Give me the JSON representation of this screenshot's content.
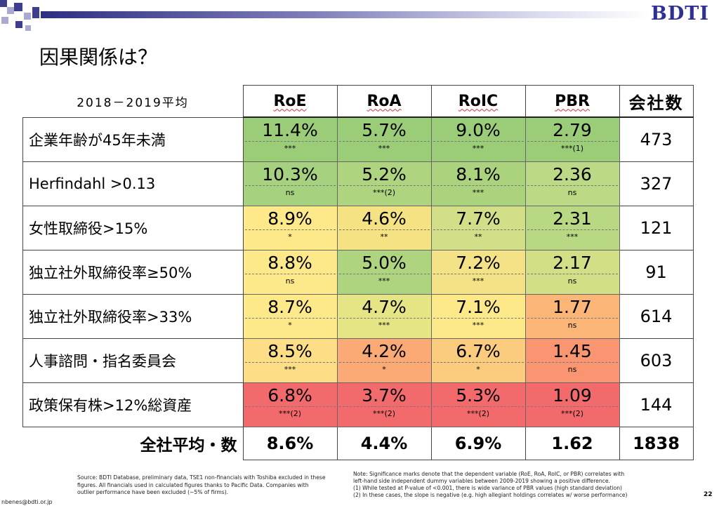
{
  "brand": {
    "logo_text": "BDTI"
  },
  "title": "因果関係は？",
  "table": {
    "period_label": "2018－2019平均",
    "columns": [
      "RoE",
      "RoA",
      "RoIC",
      "PBR"
    ],
    "count_header": "会社数",
    "rows": [
      {
        "label": "企業年齢が45年未満",
        "cells": [
          {
            "value": "11.4%",
            "sig": "***",
            "color": "#9bcd78"
          },
          {
            "value": "5.7%",
            "sig": "***",
            "color": "#9bcd78"
          },
          {
            "value": "9.0%",
            "sig": "***",
            "color": "#9bcd78"
          },
          {
            "value": "2.79",
            "sig": "***(1)",
            "color": "#9bcd78"
          }
        ],
        "count": "473"
      },
      {
        "label": "Herfindahl >0.13",
        "cells": [
          {
            "value": "10.3%",
            "sig": "ns",
            "color": "#a6d17e"
          },
          {
            "value": "5.2%",
            "sig": "***(2)",
            "color": "#afd47f"
          },
          {
            "value": "8.1%",
            "sig": "***",
            "color": "#abd27d"
          },
          {
            "value": "2.36",
            "sig": "ns",
            "color": "#bcd985"
          }
        ],
        "count": "327"
      },
      {
        "label": "女性取締役>15%",
        "cells": [
          {
            "value": "8.9%",
            "sig": "*",
            "color": "#fde88a"
          },
          {
            "value": "4.6%",
            "sig": "**",
            "color": "#f4e283"
          },
          {
            "value": "7.7%",
            "sig": "**",
            "color": "#d2df88"
          },
          {
            "value": "2.31",
            "sig": "***",
            "color": "#b8d883"
          }
        ],
        "count": "121"
      },
      {
        "label": "独立社外取締役率≥50%",
        "cells": [
          {
            "value": "8.8%",
            "sig": "ns",
            "color": "#fde88a"
          },
          {
            "value": "5.0%",
            "sig": "***",
            "color": "#afd47f"
          },
          {
            "value": "7.2%",
            "sig": "***",
            "color": "#f4e386"
          },
          {
            "value": "2.17",
            "sig": "ns",
            "color": "#d3df86"
          }
        ],
        "count": "91"
      },
      {
        "label": "独立社外取締役率>33%",
        "cells": [
          {
            "value": "8.7%",
            "sig": "*",
            "color": "#fde88a"
          },
          {
            "value": "4.7%",
            "sig": "***",
            "color": "#e6e585"
          },
          {
            "value": "7.1%",
            "sig": "***",
            "color": "#fde88a"
          },
          {
            "value": "1.77",
            "sig": "ns",
            "color": "#fbb677"
          }
        ],
        "count": "614"
      },
      {
        "label": "人事諮問・指名委員会",
        "cells": [
          {
            "value": "8.5%",
            "sig": "***",
            "color": "#fdde86"
          },
          {
            "value": "4.2%",
            "sig": "*",
            "color": "#fba975"
          },
          {
            "value": "6.7%",
            "sig": "*",
            "color": "#fccc7e"
          },
          {
            "value": "1.45",
            "sig": "ns",
            "color": "#f99570"
          }
        ],
        "count": "603"
      },
      {
        "label": "政策保有株>12%総資産",
        "cells": [
          {
            "value": "6.8%",
            "sig": "***(2)",
            "color": "#f36a6c"
          },
          {
            "value": "3.7%",
            "sig": "***(2)",
            "color": "#f36a6c"
          },
          {
            "value": "5.3%",
            "sig": "***(2)",
            "color": "#f36a6c"
          },
          {
            "value": "1.09",
            "sig": "***(2)",
            "color": "#f36a6c"
          }
        ],
        "count": "144"
      }
    ],
    "total": {
      "label": "全社平均・数",
      "values": [
        "8.6%",
        "4.4%",
        "6.9%",
        "1.62"
      ],
      "count": "1838"
    }
  },
  "footnote_left": "Source: BDTI Database, preliminary data, TSE1 non-financials with Toshiba excluded in these figures. All financials used in calculated figures thanks to Pacific Data. Companies with outlier performance have been excluded (~5% of firms).",
  "footnote_right": [
    "Note: Significance marks denote that the dependent variable (RoE, RoA, RoIC, or PBR) correlates with",
    "left-hand side independent dummy variables between 2009-2019 showing a positive difference.",
    "(1) While tested at P-value of <0.001, there is wide variance of PBR values (high standard deviation)",
    "(2) In these cases, the slope is negative (e.g. high allegiant holdings correlates w/ worse performance)"
  ],
  "email": "nbenes@bdti.or.jp",
  "page_number": "22"
}
